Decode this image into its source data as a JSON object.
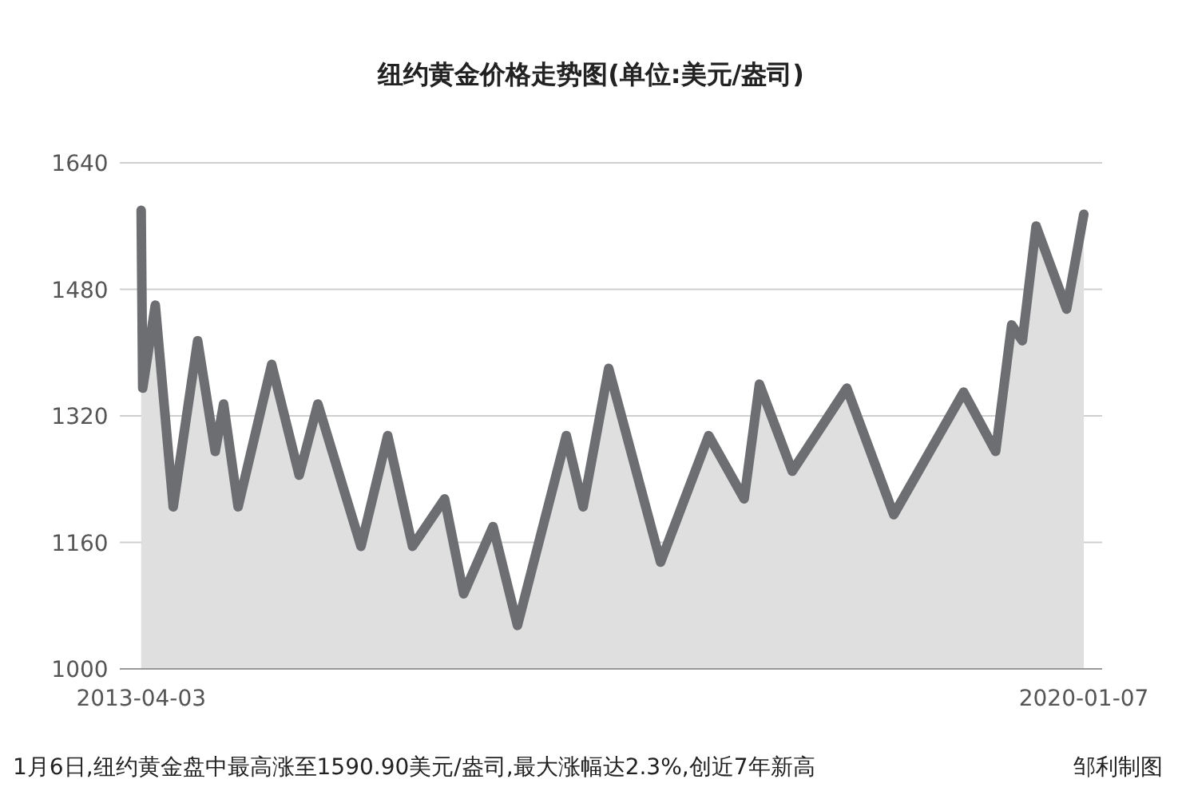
{
  "chart_data": {
    "type": "area",
    "title": "纽约黄金价格走势图(单位:美元/盎司)",
    "x": [
      "2013-04-03",
      "2013-04-07",
      "2013-05-10",
      "2013-06-26",
      "2013-08-29",
      "2013-10-14",
      "2013-11-05",
      "2013-12-13",
      "2014-03-11",
      "2014-05-22",
      "2014-07-10",
      "2014-10-31",
      "2015-01-09",
      "2015-03-15",
      "2015-06-07",
      "2015-07-27",
      "2015-10-12",
      "2015-12-15",
      "2016-04-21",
      "2016-06-04",
      "2016-08-10",
      "2016-12-24",
      "2017-04-29",
      "2017-07-31",
      "2017-09-09",
      "2017-12-04",
      "2018-04-26",
      "2018-08-27",
      "2019-02-26",
      "2019-05-21",
      "2019-07-02",
      "2019-07-30",
      "2019-09-04",
      "2019-11-23",
      "2020-01-07"
    ],
    "series": [
      {
        "color": "#6d6e71",
        "values": [
          1580,
          1355,
          1460,
          1205,
          1415,
          1275,
          1335,
          1205,
          1385,
          1245,
          1335,
          1155,
          1295,
          1155,
          1215,
          1095,
          1180,
          1055,
          1295,
          1205,
          1380,
          1135,
          1295,
          1215,
          1360,
          1250,
          1355,
          1195,
          1350,
          1275,
          1435,
          1415,
          1560,
          1455,
          1575
        ]
      }
    ],
    "xlim": [
      "2013-02-06",
      "2020-02-24"
    ],
    "xticks": [
      {
        "value": "2013-04-03",
        "label": "2013-04-03"
      },
      {
        "value": "2020-01-07",
        "label": "2020-01-07"
      }
    ],
    "ylim": [
      1000,
      1640
    ],
    "yticks": [
      1000,
      1160,
      1320,
      1480,
      1640
    ],
    "grid": "y",
    "annotations": [
      "1月6日,纽约黄金盘中最高涨至1590.90美元/盎司,最大涨幅达2.3%,创近7年新高",
      "邹利制图"
    ]
  }
}
